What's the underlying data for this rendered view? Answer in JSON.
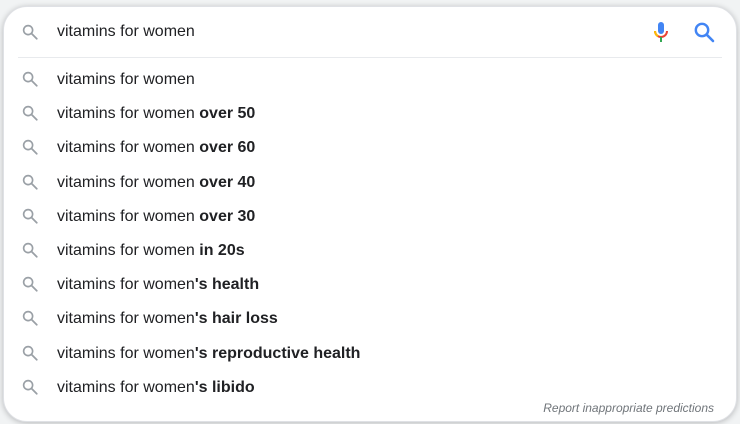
{
  "search": {
    "query": "vitamins for women"
  },
  "suggestions": [
    {
      "prefix": "vitamins for women",
      "suffix": ""
    },
    {
      "prefix": "vitamins for women ",
      "suffix": "over 50"
    },
    {
      "prefix": "vitamins for women ",
      "suffix": "over 60"
    },
    {
      "prefix": "vitamins for women ",
      "suffix": "over 40"
    },
    {
      "prefix": "vitamins for women ",
      "suffix": "over 30"
    },
    {
      "prefix": "vitamins for women ",
      "suffix": "in 20s"
    },
    {
      "prefix": "vitamins for women",
      "suffix": "'s health"
    },
    {
      "prefix": "vitamins for women",
      "suffix": "'s hair loss"
    },
    {
      "prefix": "vitamins for women",
      "suffix": "'s reproductive health"
    },
    {
      "prefix": "vitamins for women",
      "suffix": "'s libido"
    }
  ],
  "footer": {
    "report_label": "Report inappropriate predictions"
  },
  "icons": {
    "suggestion_icon": "search-icon",
    "voice_icon": "microphone-icon",
    "submit_icon": "search-icon"
  },
  "colors": {
    "mic_blue": "#4285f4",
    "mic_red": "#ea4335",
    "mic_yellow": "#fbbc04",
    "mic_green": "#34a853",
    "search_blue": "#4285f4",
    "suggestion_icon": "#9aa0a6"
  }
}
